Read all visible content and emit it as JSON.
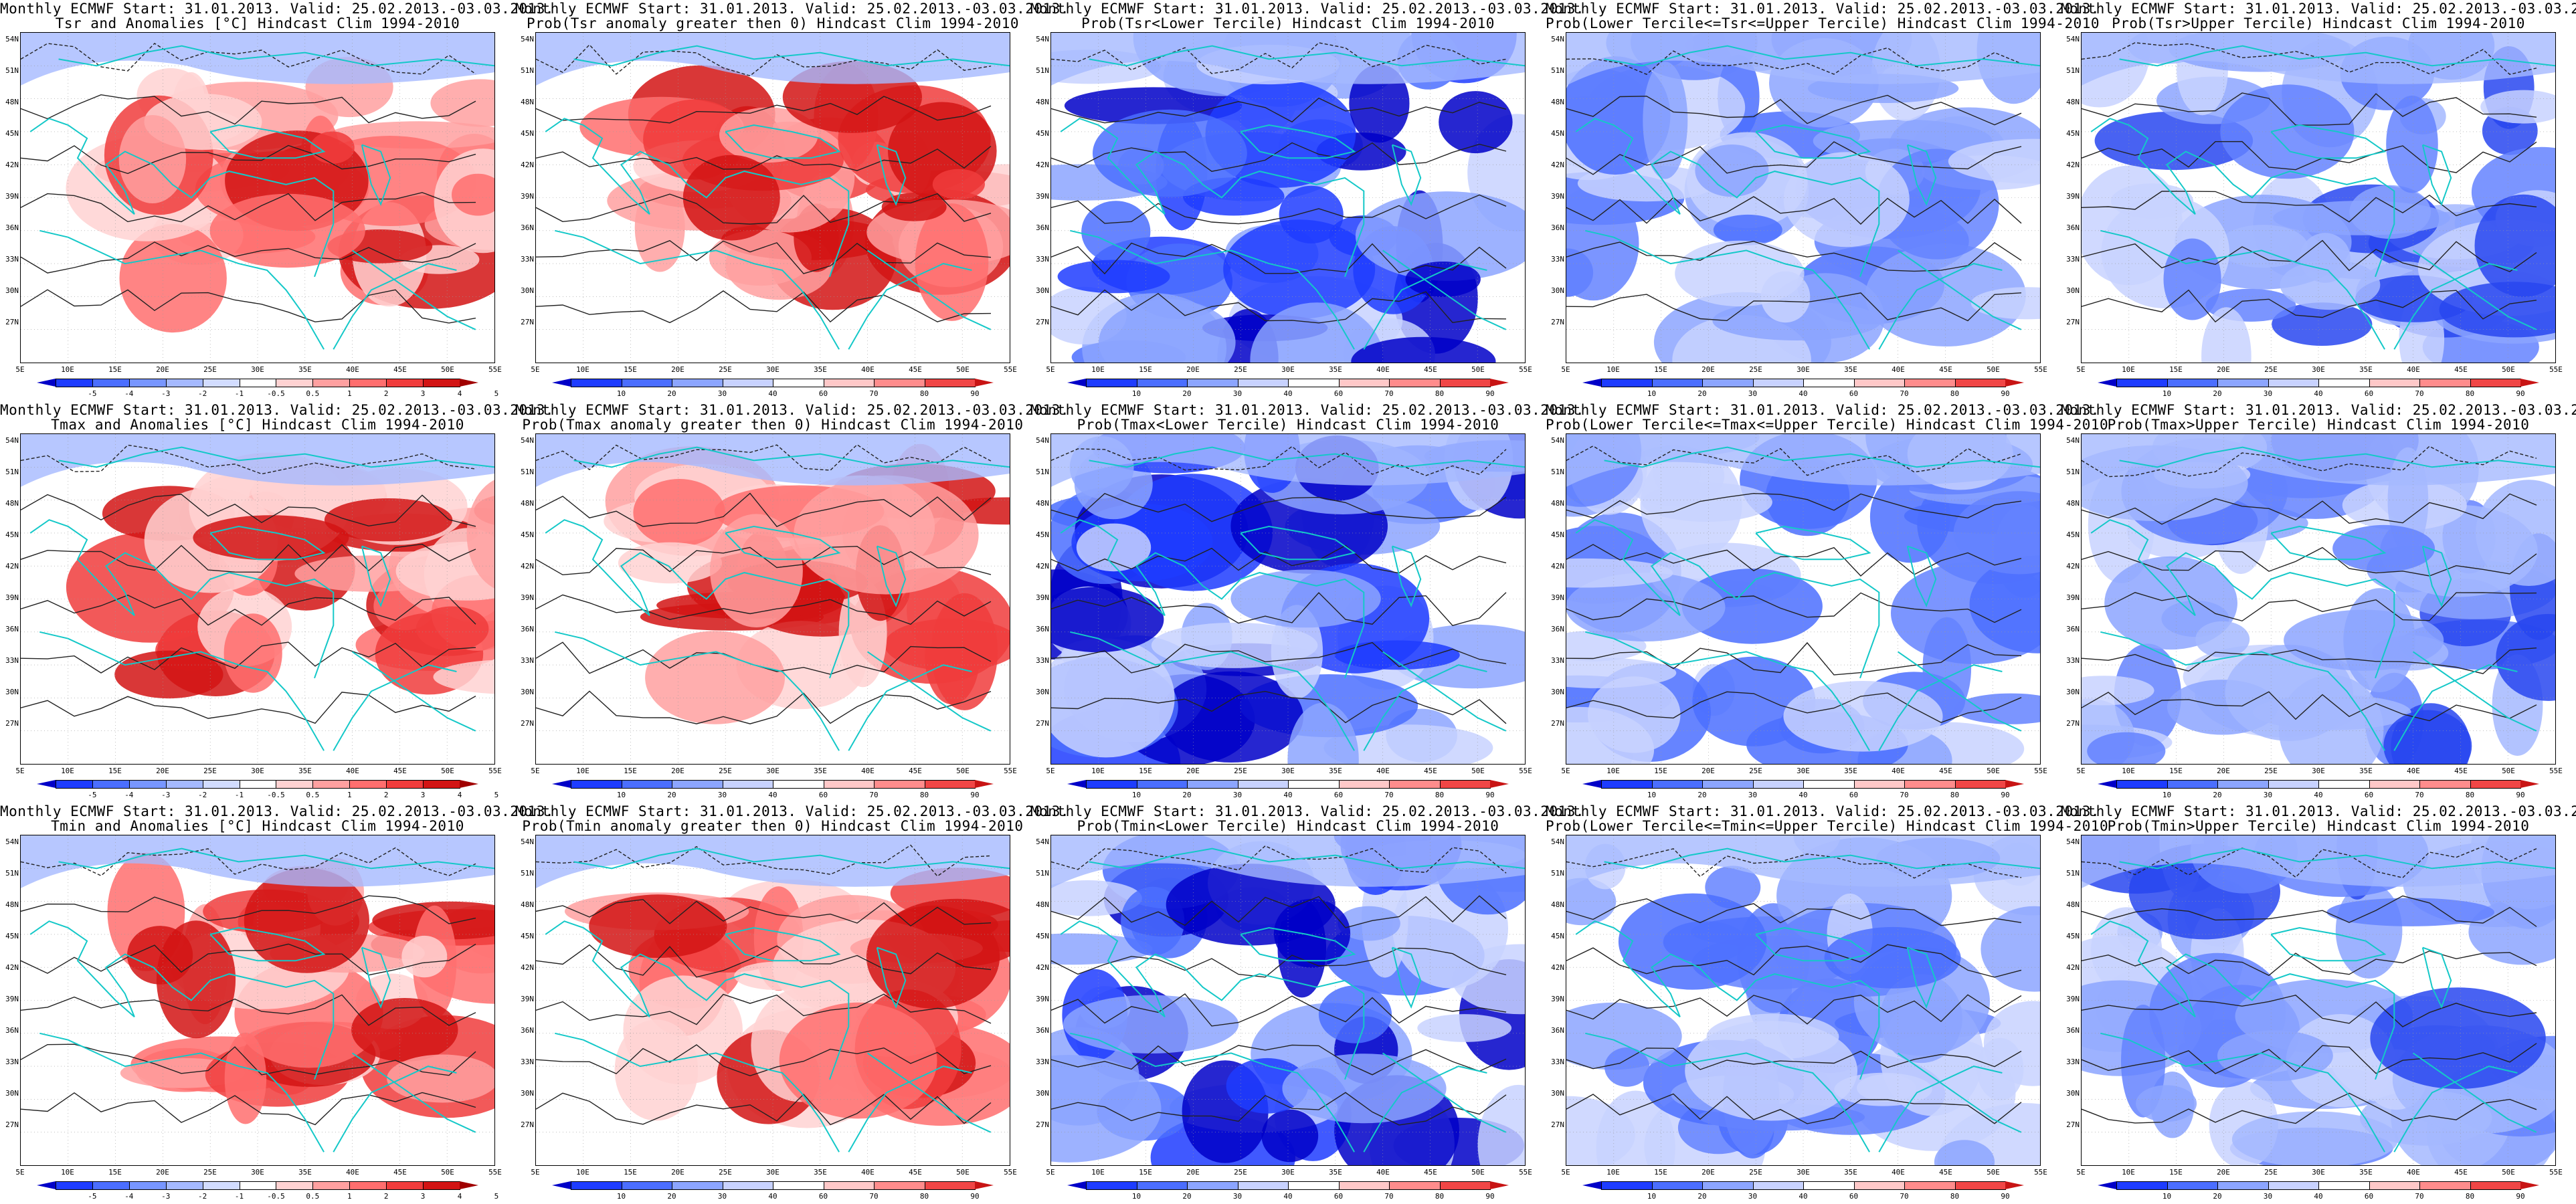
{
  "header_line": "Monthly ECMWF Start: 31.01.2013. Valid: 25.02.2013.-03.03.2013.",
  "lat_labels": [
    "54N",
    "51N",
    "48N",
    "45N",
    "42N",
    "39N",
    "36N",
    "33N",
    "30N",
    "27N"
  ],
  "lon_labels": [
    "5E",
    "10E",
    "15E",
    "20E",
    "25E",
    "30E",
    "35E",
    "40E",
    "45E",
    "50E",
    "55E"
  ],
  "colorbars": {
    "anomaly": {
      "labels": [
        "-5",
        "-4",
        "-3",
        "-2",
        "-1",
        "-0.5",
        "0.5",
        "1",
        "2",
        "3",
        "4",
        "5"
      ],
      "colors": [
        "#0000c8",
        "#1e3cff",
        "#4b6eff",
        "#7896ff",
        "#a5b9ff",
        "#d2dcff",
        "#ffffff",
        "#ffd2d2",
        "#ffa0a0",
        "#ff6e6e",
        "#f03c3c",
        "#d21414",
        "#a00000"
      ]
    },
    "probability": {
      "labels": [
        "10",
        "20",
        "30",
        "40",
        "60",
        "70",
        "80",
        "90"
      ],
      "colors": [
        "#0000c8",
        "#1e3cff",
        "#4b6eff",
        "#8ca5ff",
        "#c8d2ff",
        "#ffffff",
        "#ffc8c8",
        "#ff8c8c",
        "#f04646",
        "#c81414"
      ]
    }
  },
  "panels": [
    {
      "title": "Tsr and Anomalies [°C] Hindcast Clim 1994-2010",
      "type": "anomaly",
      "scheme": "warm"
    },
    {
      "title": "Prob(Tsr anomaly greater then 0) Hindcast Clim 1994-2010",
      "type": "probability",
      "scheme": "warm"
    },
    {
      "title": "Prob(Tsr<Lower Tercile) Hindcast Clim 1994-2010",
      "type": "probability",
      "scheme": "cold"
    },
    {
      "title": "Prob(Lower Tercile<=Tsr<=Upper Tercile) Hindcast Clim 1994-2010",
      "type": "probability",
      "scheme": "mixed"
    },
    {
      "title": "Prob(Tsr>Upper Tercile) Hindcast Clim 1994-2010",
      "type": "probability",
      "scheme": "lightcold"
    },
    {
      "title": "Tmax and Anomalies [°C] Hindcast Clim 1994-2010",
      "type": "anomaly",
      "scheme": "warm"
    },
    {
      "title": "Prob(Tmax anomaly greater then 0) Hindcast Clim 1994-2010",
      "type": "probability",
      "scheme": "warm"
    },
    {
      "title": "Prob(Tmax<Lower Tercile) Hindcast Clim 1994-2010",
      "type": "probability",
      "scheme": "cold"
    },
    {
      "title": "Prob(Lower Tercile<=Tmax<=Upper Tercile) Hindcast Clim 1994-2010",
      "type": "probability",
      "scheme": "mixed"
    },
    {
      "title": "Prob(Tmax>Upper Tercile) Hindcast Clim 1994-2010",
      "type": "probability",
      "scheme": "lightcold"
    },
    {
      "title": "Tmin and Anomalies [°C] Hindcast Clim 1994-2010",
      "type": "anomaly",
      "scheme": "warm"
    },
    {
      "title": "Prob(Tmin anomaly greater then 0) Hindcast Clim 1994-2010",
      "type": "probability",
      "scheme": "warm"
    },
    {
      "title": "Prob(Tmin<Lower Tercile) Hindcast Clim 1994-2010",
      "type": "probability",
      "scheme": "cold"
    },
    {
      "title": "Prob(Lower Tercile<=Tmin<=Upper Tercile) Hindcast Clim 1994-2010",
      "type": "probability",
      "scheme": "mixed"
    },
    {
      "title": "Prob(Tmin>Upper Tercile) Hindcast Clim 1994-2010",
      "type": "probability",
      "scheme": "lightcold"
    }
  ]
}
